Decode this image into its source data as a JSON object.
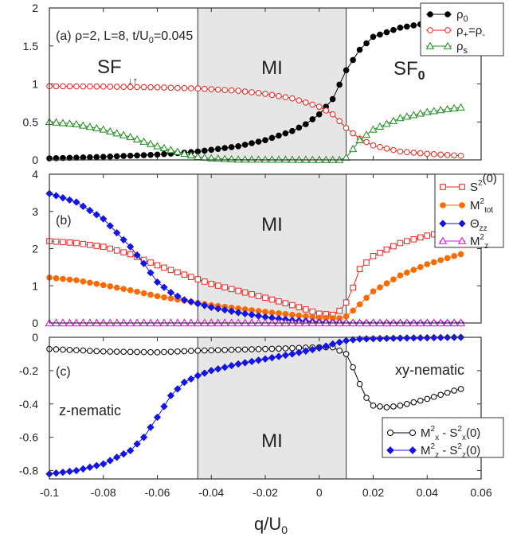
{
  "xaxis": {
    "label": "q/U",
    "label_sub": "0",
    "ticks": [
      "-0.1",
      "-0.08",
      "-0.06",
      "-0.04",
      "-0.02",
      "0",
      "0.02",
      "0.04",
      "0.06"
    ],
    "range": [
      -0.1,
      0.06
    ]
  },
  "mi_region": [
    -0.045,
    0.01
  ],
  "colors": {
    "black": "#000000",
    "red": "#e8231e",
    "green": "#1e8a1e",
    "orange": "#ff6a00",
    "blue": "#1414e6",
    "magenta": "#e600e6",
    "shade": "#e6e6e6"
  },
  "panels": [
    {
      "id": "a",
      "ylim": [
        0,
        2
      ],
      "yticks": [
        "0",
        "0.5",
        "1",
        "1.5",
        "2"
      ],
      "panel_label": "(a) ρ=2, L=8, t/U",
      "panel_label_sub": "0",
      "panel_label_tail": "=0.045",
      "region_labels": {
        "sf_left": "SF",
        "sf_left_arrows": "↓↑",
        "mi": "MI",
        "sf_right": "SF",
        "sf_right_sub": "0"
      },
      "legend": [
        {
          "label": "ρ",
          "sub": "0"
        },
        {
          "label": "ρ",
          "sub": "+",
          "tail": "=ρ",
          "tail_sub": "-"
        },
        {
          "label": "ρ",
          "sub": "s"
        }
      ]
    },
    {
      "id": "b",
      "ylim": [
        0,
        4
      ],
      "yticks": [
        "0",
        "1",
        "2",
        "3",
        "4"
      ],
      "panel_label": "(b)",
      "region_labels": {
        "mi": "MI"
      },
      "legend": [
        {
          "label": "S",
          "sup": "2",
          "tail": "(0)"
        },
        {
          "label": "M",
          "sup": "2",
          "sub": "tot"
        },
        {
          "label": "Θ",
          "sub": "zz"
        },
        {
          "label": "M",
          "sup": "2",
          "sub": "z"
        }
      ]
    },
    {
      "id": "c",
      "ylim": [
        -0.85,
        0
      ],
      "yticks": [
        "0",
        "-0.2",
        "-0.4",
        "-0.6",
        "-0.8"
      ],
      "panel_label": "(c)",
      "region_labels": {
        "mi": "MI",
        "z_nematic": "z-nematic",
        "xy_nematic": "xy-nematic"
      },
      "legend": [
        {
          "label": "M",
          "sup": "2",
          "sub": "x",
          "tail": "- S",
          "tail_sup": "2",
          "tail_sub": "x",
          "tail2": "(0)"
        },
        {
          "label": "M",
          "sup": "2",
          "sub": "z",
          "tail": "- S",
          "tail_sup": "2",
          "tail_sub": "z",
          "tail2": "(0)"
        }
      ]
    }
  ],
  "chart_data": {
    "type": "line",
    "x_range": [
      -0.1,
      0.0525
    ],
    "n_points": 62,
    "panels": [
      {
        "id": "a",
        "series": [
          {
            "key": "rho0",
            "marker": "filled-circle",
            "color": "black",
            "anchors": [
              [
                -0.1,
                0.02
              ],
              [
                -0.08,
                0.04
              ],
              [
                -0.06,
                0.07
              ],
              [
                -0.045,
                0.11
              ],
              [
                -0.03,
                0.18
              ],
              [
                -0.02,
                0.26
              ],
              [
                -0.01,
                0.38
              ],
              [
                -0.005,
                0.47
              ],
              [
                0,
                0.6
              ],
              [
                0.005,
                0.8
              ],
              [
                0.01,
                1.18
              ],
              [
                0.015,
                1.45
              ],
              [
                0.02,
                1.62
              ],
              [
                0.03,
                1.74
              ],
              [
                0.04,
                1.8
              ],
              [
                0.05,
                1.83
              ],
              [
                0.0525,
                1.84
              ]
            ]
          },
          {
            "key": "rho_plus",
            "marker": "open-circle",
            "color": "red",
            "anchors": [
              [
                -0.1,
                0.97
              ],
              [
                -0.08,
                0.965
              ],
              [
                -0.06,
                0.955
              ],
              [
                -0.045,
                0.94
              ],
              [
                -0.03,
                0.91
              ],
              [
                -0.02,
                0.87
              ],
              [
                -0.01,
                0.81
              ],
              [
                0,
                0.7
              ],
              [
                0.005,
                0.6
              ],
              [
                0.01,
                0.42
              ],
              [
                0.015,
                0.28
              ],
              [
                0.02,
                0.19
              ],
              [
                0.03,
                0.11
              ],
              [
                0.04,
                0.08
              ],
              [
                0.05,
                0.06
              ],
              [
                0.0525,
                0.055
              ]
            ]
          },
          {
            "key": "rho_s",
            "marker": "open-triangle",
            "color": "green",
            "anchors": [
              [
                -0.1,
                0.5
              ],
              [
                -0.09,
                0.47
              ],
              [
                -0.08,
                0.4
              ],
              [
                -0.07,
                0.3
              ],
              [
                -0.06,
                0.18
              ],
              [
                -0.05,
                0.08
              ],
              [
                -0.045,
                0.04
              ],
              [
                -0.04,
                0.02
              ],
              [
                -0.03,
                0.005
              ],
              [
                0.008,
                0.0
              ],
              [
                0.01,
                0.03
              ],
              [
                0.012,
                0.12
              ],
              [
                0.015,
                0.26
              ],
              [
                0.02,
                0.4
              ],
              [
                0.03,
                0.55
              ],
              [
                0.04,
                0.63
              ],
              [
                0.05,
                0.68
              ],
              [
                0.0525,
                0.69
              ]
            ]
          }
        ]
      },
      {
        "id": "b",
        "series": [
          {
            "key": "S2_0",
            "marker": "open-square",
            "color": "red",
            "anchors": [
              [
                -0.1,
                2.2
              ],
              [
                -0.09,
                2.15
              ],
              [
                -0.08,
                2.05
              ],
              [
                -0.07,
                1.85
              ],
              [
                -0.06,
                1.55
              ],
              [
                -0.05,
                1.3
              ],
              [
                -0.04,
                1.05
              ],
              [
                -0.02,
                0.68
              ],
              [
                -0.01,
                0.48
              ],
              [
                0,
                0.25
              ],
              [
                0.005,
                0.22
              ],
              [
                0.008,
                0.35
              ],
              [
                0.011,
                0.65
              ],
              [
                0.015,
                1.45
              ],
              [
                0.02,
                1.8
              ],
              [
                0.03,
                2.15
              ],
              [
                0.04,
                2.35
              ],
              [
                0.05,
                2.48
              ],
              [
                0.0525,
                2.5
              ]
            ]
          },
          {
            "key": "M2_tot",
            "marker": "filled-circle",
            "color": "orange",
            "anchors": [
              [
                -0.1,
                1.22
              ],
              [
                -0.09,
                1.15
              ],
              [
                -0.08,
                1.02
              ],
              [
                -0.07,
                0.88
              ],
              [
                -0.06,
                0.72
              ],
              [
                -0.05,
                0.6
              ],
              [
                -0.04,
                0.48
              ],
              [
                -0.02,
                0.3
              ],
              [
                -0.01,
                0.22
              ],
              [
                0,
                0.14
              ],
              [
                0.005,
                0.13
              ],
              [
                0.009,
                0.12
              ],
              [
                0.012,
                0.3
              ],
              [
                0.015,
                0.5
              ],
              [
                0.02,
                0.85
              ],
              [
                0.03,
                1.28
              ],
              [
                0.04,
                1.58
              ],
              [
                0.05,
                1.8
              ],
              [
                0.0525,
                1.85
              ]
            ]
          },
          {
            "key": "Theta_zz",
            "marker": "filled-diamond",
            "color": "blue",
            "anchors": [
              [
                -0.1,
                3.48
              ],
              [
                -0.09,
                3.25
              ],
              [
                -0.08,
                2.8
              ],
              [
                -0.07,
                2.05
              ],
              [
                -0.065,
                1.6
              ],
              [
                -0.06,
                1.1
              ],
              [
                -0.055,
                0.82
              ],
              [
                -0.05,
                0.62
              ],
              [
                -0.04,
                0.42
              ],
              [
                -0.03,
                0.28
              ],
              [
                -0.02,
                0.16
              ],
              [
                -0.01,
                0.07
              ],
              [
                0,
                0.02
              ],
              [
                0.01,
                0.0
              ],
              [
                0.0525,
                0.0
              ]
            ]
          },
          {
            "key": "M2_z",
            "marker": "open-triangle",
            "color": "magenta",
            "anchors": [
              [
                -0.1,
                0.0
              ],
              [
                0.0525,
                0.0
              ]
            ]
          }
        ]
      },
      {
        "id": "c",
        "series": [
          {
            "key": "Mx2_minus_Sx2",
            "marker": "open-circle",
            "color": "black",
            "anchors": [
              [
                -0.1,
                -0.07
              ],
              [
                -0.08,
                -0.085
              ],
              [
                -0.06,
                -0.09
              ],
              [
                -0.045,
                -0.08
              ],
              [
                -0.02,
                -0.07
              ],
              [
                0,
                -0.06
              ],
              [
                0.005,
                -0.06
              ],
              [
                0.01,
                -0.1
              ],
              [
                0.012,
                -0.16
              ],
              [
                0.015,
                -0.28
              ],
              [
                0.018,
                -0.38
              ],
              [
                0.02,
                -0.41
              ],
              [
                0.025,
                -0.42
              ],
              [
                0.03,
                -0.41
              ],
              [
                0.04,
                -0.37
              ],
              [
                0.05,
                -0.32
              ],
              [
                0.0525,
                -0.31
              ]
            ]
          },
          {
            "key": "Mz2_minus_Sz2",
            "marker": "filled-diamond",
            "color": "blue",
            "anchors": [
              [
                -0.1,
                -0.82
              ],
              [
                -0.09,
                -0.8
              ],
              [
                -0.08,
                -0.76
              ],
              [
                -0.07,
                -0.68
              ],
              [
                -0.065,
                -0.6
              ],
              [
                -0.06,
                -0.48
              ],
              [
                -0.055,
                -0.35
              ],
              [
                -0.05,
                -0.27
              ],
              [
                -0.045,
                -0.23
              ],
              [
                -0.04,
                -0.2
              ],
              [
                -0.03,
                -0.16
              ],
              [
                -0.02,
                -0.13
              ],
              [
                -0.01,
                -0.1
              ],
              [
                0,
                -0.065
              ],
              [
                0.005,
                -0.04
              ],
              [
                0.01,
                -0.02
              ],
              [
                0.015,
                -0.01
              ],
              [
                0.03,
                -0.005
              ],
              [
                0.0525,
                0.0
              ]
            ]
          }
        ]
      }
    ]
  }
}
